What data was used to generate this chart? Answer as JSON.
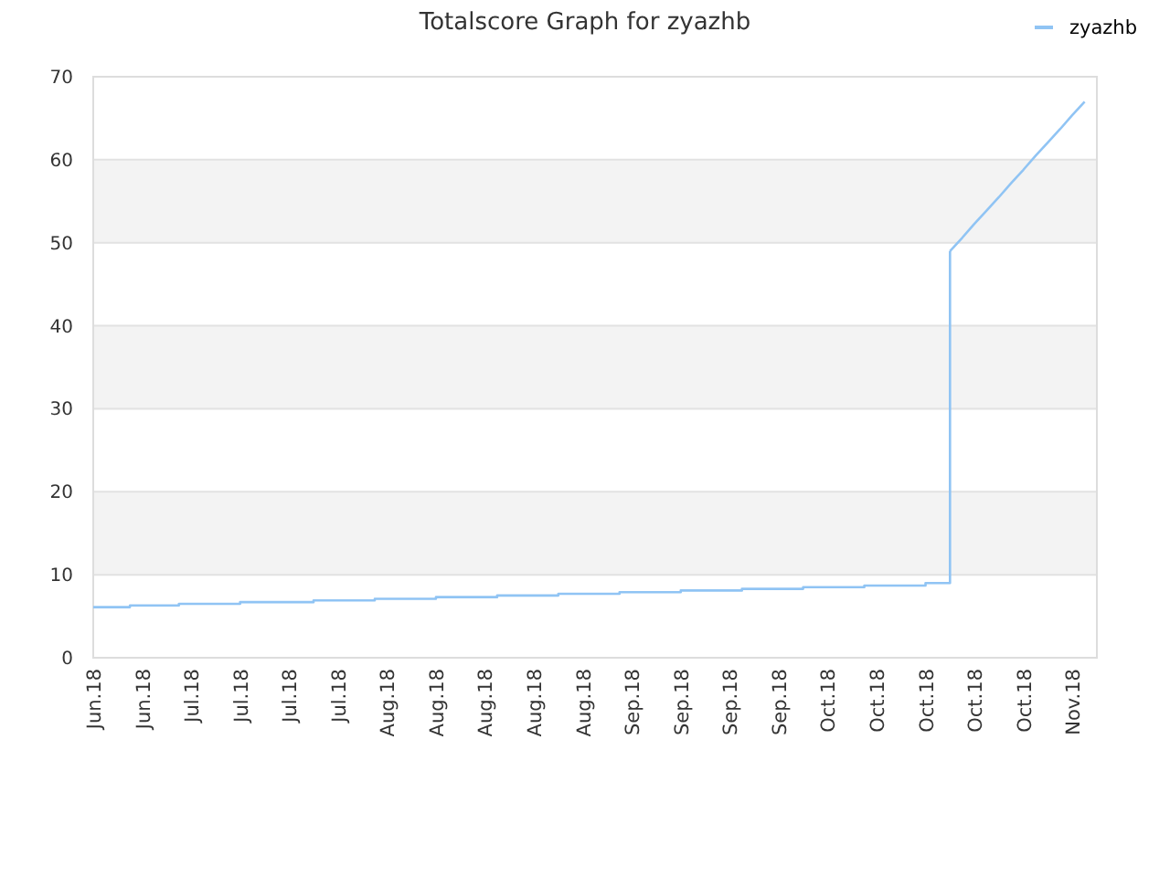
{
  "chart_data": {
    "type": "line",
    "title": "Totalscore Graph for zyazhb",
    "grid": "y",
    "legend": "top right",
    "categories": [
      "Jun.18",
      null,
      null,
      null,
      "Jun.18",
      null,
      null,
      null,
      "Jul.18",
      null,
      null,
      null,
      "Jul.18",
      null,
      null,
      null,
      "Jul.18",
      null,
      null,
      null,
      "Jul.18",
      null,
      null,
      null,
      "Aug.18",
      null,
      null,
      null,
      "Aug.18",
      null,
      null,
      null,
      "Aug.18",
      null,
      null,
      null,
      "Aug.18",
      null,
      null,
      null,
      "Aug.18",
      null,
      null,
      null,
      "Sep.18",
      null,
      null,
      null,
      "Sep.18",
      null,
      null,
      null,
      "Sep.18",
      null,
      null,
      null,
      "Sep.18",
      null,
      null,
      null,
      "Oct.18",
      null,
      null,
      null,
      "Oct.18",
      null,
      null,
      null,
      "Oct.18",
      null,
      null,
      null,
      "Oct.18",
      null,
      null,
      null,
      "Oct.18",
      null,
      null,
      null,
      "Nov.18",
      null,
      null
    ],
    "ylim": [
      0,
      70
    ],
    "yticks": [
      0,
      10,
      20,
      30,
      40,
      50,
      60,
      70
    ],
    "series": [
      {
        "name": "zyazhb",
        "type": "step",
        "color": "#90c4f4",
        "values": [
          6.1,
          6.1,
          6.1,
          6.3,
          6.3,
          6.3,
          6.3,
          6.5,
          6.5,
          6.5,
          6.5,
          6.5,
          6.7,
          6.7,
          6.7,
          6.7,
          6.7,
          6.7,
          6.9,
          6.9,
          6.9,
          6.9,
          6.9,
          7.1,
          7.1,
          7.1,
          7.1,
          7.1,
          7.3,
          7.3,
          7.3,
          7.3,
          7.3,
          7.5,
          7.5,
          7.5,
          7.5,
          7.5,
          7.7,
          7.7,
          7.7,
          7.7,
          7.7,
          7.9,
          7.9,
          7.9,
          7.9,
          7.9,
          8.1,
          8.1,
          8.1,
          8.1,
          8.1,
          8.3,
          8.3,
          8.3,
          8.3,
          8.3,
          8.5,
          8.5,
          8.5,
          8.5,
          8.5,
          8.7,
          8.7,
          8.7,
          8.7,
          8.7,
          9.0,
          9.0,
          49,
          null,
          null,
          null,
          null,
          null,
          null,
          null,
          null,
          null,
          null,
          null,
          null
        ]
      },
      {
        "color": "#90c4f4",
        "values": [
          null,
          null,
          null,
          null,
          null,
          null,
          null,
          null,
          null,
          null,
          null,
          null,
          null,
          null,
          null,
          null,
          null,
          null,
          null,
          null,
          null,
          null,
          null,
          null,
          null,
          null,
          null,
          null,
          null,
          null,
          null,
          null,
          null,
          null,
          null,
          null,
          null,
          null,
          null,
          null,
          null,
          null,
          null,
          null,
          null,
          null,
          null,
          null,
          null,
          null,
          null,
          null,
          null,
          null,
          null,
          null,
          null,
          null,
          null,
          null,
          null,
          null,
          null,
          null,
          null,
          null,
          null,
          null,
          null,
          null,
          49,
          50.6,
          52.3,
          53.9,
          55.5,
          57.2,
          58.8,
          60.5,
          62.1,
          63.7,
          65.4,
          67,
          null
        ]
      }
    ]
  }
}
